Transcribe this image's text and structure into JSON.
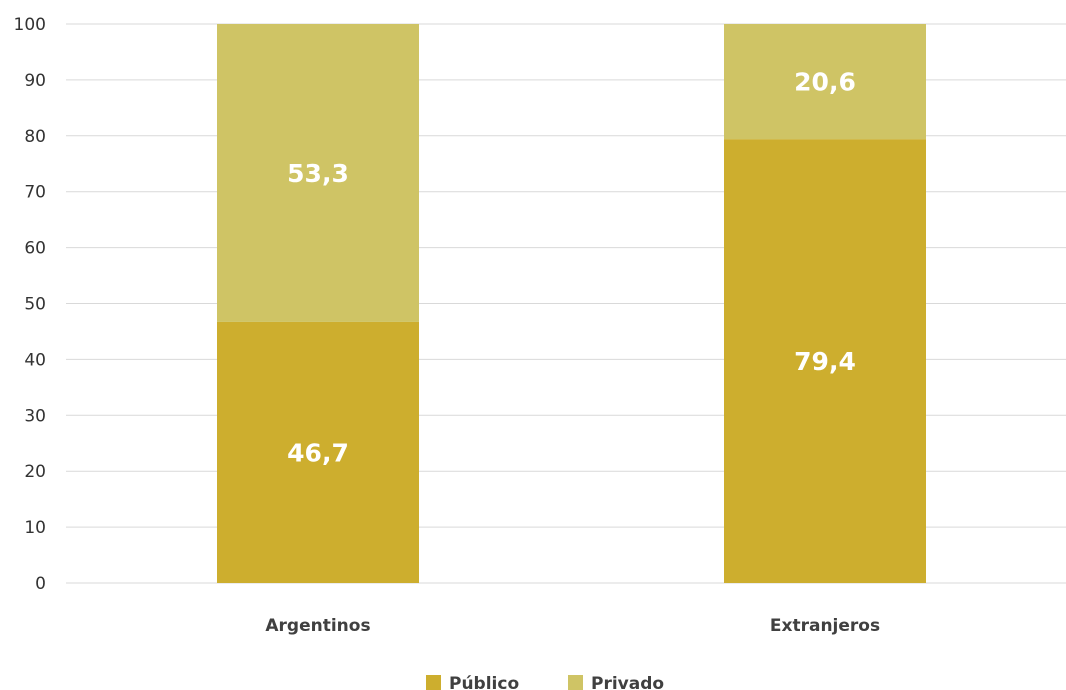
{
  "chart_data": {
    "type": "bar",
    "stacked": true,
    "categories": [
      "Argentinos",
      "Extranjeros"
    ],
    "series": [
      {
        "name": "Público",
        "values": [
          46.7,
          79.4
        ],
        "labels": [
          "46,7",
          "79,4"
        ],
        "color": "#cdae2e"
      },
      {
        "name": "Privado",
        "values": [
          53.3,
          20.6
        ],
        "labels": [
          "53,3",
          "20,6"
        ],
        "color": "#cfc465"
      }
    ],
    "ylim": [
      0,
      100
    ],
    "yticks": [
      0,
      10,
      20,
      30,
      40,
      50,
      60,
      70,
      80,
      90,
      100
    ],
    "grid": true,
    "legend_position": "bottom",
    "title": "",
    "xlabel": "",
    "ylabel": ""
  }
}
